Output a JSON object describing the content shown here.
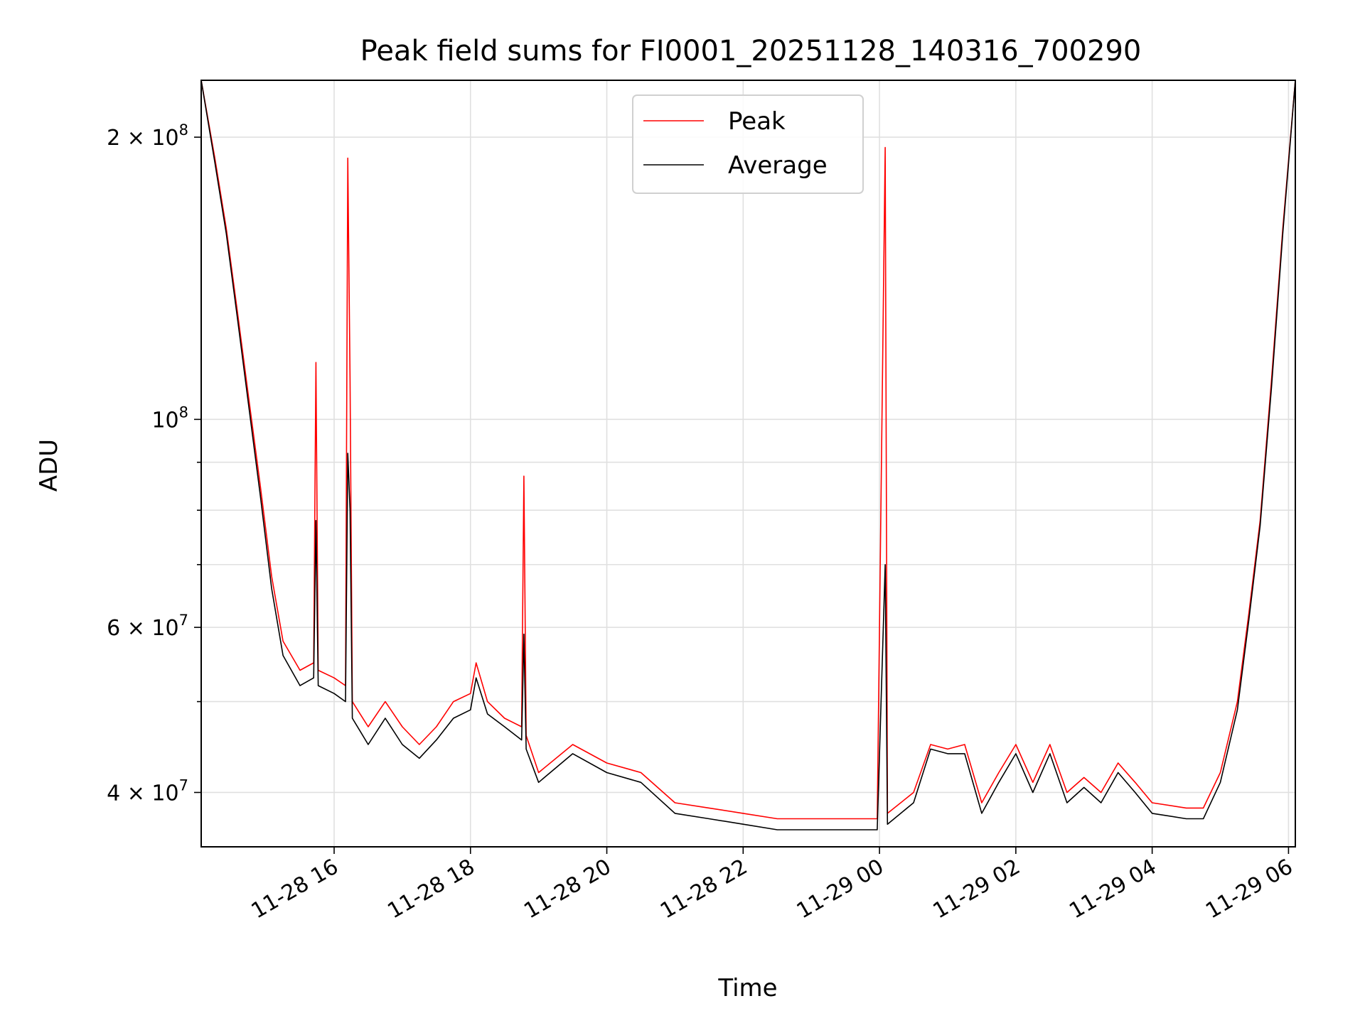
{
  "chart_data": {
    "type": "line",
    "title": "Peak field sums for FI0001_20251128_140316_700290",
    "xlabel": "Time",
    "ylabel": "ADU",
    "x_scale": "time",
    "y_scale": "log",
    "xlim": [
      "2025-11-28 14:03",
      "2025-11-29 06:06"
    ],
    "ylim": [
      35000000,
      230000000
    ],
    "grid": true,
    "legend_location": "upper center",
    "x_ticks": [
      {
        "value": "2025-11-28 16:00",
        "label": "11-28 16"
      },
      {
        "value": "2025-11-28 18:00",
        "label": "11-28 18"
      },
      {
        "value": "2025-11-28 20:00",
        "label": "11-28 20"
      },
      {
        "value": "2025-11-28 22:00",
        "label": "11-28 22"
      },
      {
        "value": "2025-11-29 00:00",
        "label": "11-29 00"
      },
      {
        "value": "2025-11-29 02:00",
        "label": "11-29 02"
      },
      {
        "value": "2025-11-29 04:00",
        "label": "11-29 04"
      },
      {
        "value": "2025-11-29 06:00",
        "label": "11-29 06"
      }
    ],
    "y_ticks": [
      {
        "value": 40000000,
        "base": "4",
        "exp": "7"
      },
      {
        "value": 60000000,
        "base": "6",
        "exp": "7"
      },
      {
        "value": 100000000,
        "base": "",
        "exp": "8"
      },
      {
        "value": 200000000,
        "base": "2",
        "exp": "8"
      }
    ],
    "y_minor_ticks": [
      50000000,
      70000000,
      80000000,
      90000000
    ],
    "series": [
      {
        "name": "Peak",
        "color": "#ff0000",
        "points": [
          [
            "2025-11-28 14:03",
            230000000
          ],
          [
            "2025-11-28 14:15",
            190000000
          ],
          [
            "2025-11-28 14:25",
            160000000
          ],
          [
            "2025-11-28 14:35",
            130000000
          ],
          [
            "2025-11-28 14:45",
            105000000
          ],
          [
            "2025-11-28 14:55",
            85000000
          ],
          [
            "2025-11-28 15:05",
            68000000
          ],
          [
            "2025-11-28 15:15",
            58000000
          ],
          [
            "2025-11-28 15:30",
            54000000
          ],
          [
            "2025-11-28 15:42",
            55000000
          ],
          [
            "2025-11-28 15:44",
            115000000
          ],
          [
            "2025-11-28 15:46",
            54000000
          ],
          [
            "2025-11-28 16:00",
            53000000
          ],
          [
            "2025-11-28 16:10",
            52000000
          ],
          [
            "2025-11-28 16:12",
            190000000
          ],
          [
            "2025-11-28 16:14",
            110000000
          ],
          [
            "2025-11-28 16:16",
            50000000
          ],
          [
            "2025-11-28 16:30",
            47000000
          ],
          [
            "2025-11-28 16:45",
            50000000
          ],
          [
            "2025-11-28 17:00",
            47000000
          ],
          [
            "2025-11-28 17:15",
            45000000
          ],
          [
            "2025-11-28 17:30",
            47000000
          ],
          [
            "2025-11-28 17:45",
            50000000
          ],
          [
            "2025-11-28 18:00",
            51000000
          ],
          [
            "2025-11-28 18:05",
            55000000
          ],
          [
            "2025-11-28 18:15",
            50000000
          ],
          [
            "2025-11-28 18:30",
            48000000
          ],
          [
            "2025-11-28 18:45",
            47000000
          ],
          [
            "2025-11-28 18:47",
            87000000
          ],
          [
            "2025-11-28 18:49",
            46000000
          ],
          [
            "2025-11-28 19:00",
            42000000
          ],
          [
            "2025-11-28 19:30",
            45000000
          ],
          [
            "2025-11-28 20:00",
            43000000
          ],
          [
            "2025-11-28 20:30",
            42000000
          ],
          [
            "2025-11-28 21:00",
            39000000
          ],
          [
            "2025-11-28 21:30",
            38500000
          ],
          [
            "2025-11-28 22:00",
            38000000
          ],
          [
            "2025-11-28 22:30",
            37500000
          ],
          [
            "2025-11-28 23:00",
            37500000
          ],
          [
            "2025-11-28 23:30",
            37500000
          ],
          [
            "2025-11-28 23:58",
            37500000
          ],
          [
            "2025-11-29 00:05",
            195000000
          ],
          [
            "2025-11-29 00:07",
            38000000
          ],
          [
            "2025-11-29 00:30",
            40000000
          ],
          [
            "2025-11-29 00:45",
            45000000
          ],
          [
            "2025-11-29 01:00",
            44500000
          ],
          [
            "2025-11-29 01:15",
            45000000
          ],
          [
            "2025-11-29 01:30",
            39000000
          ],
          [
            "2025-11-29 01:45",
            42000000
          ],
          [
            "2025-11-29 02:00",
            45000000
          ],
          [
            "2025-11-29 02:15",
            41000000
          ],
          [
            "2025-11-29 02:30",
            45000000
          ],
          [
            "2025-11-29 02:45",
            40000000
          ],
          [
            "2025-11-29 03:00",
            41500000
          ],
          [
            "2025-11-29 03:15",
            40000000
          ],
          [
            "2025-11-29 03:30",
            43000000
          ],
          [
            "2025-11-29 03:45",
            41000000
          ],
          [
            "2025-11-29 04:00",
            39000000
          ],
          [
            "2025-11-29 04:30",
            38500000
          ],
          [
            "2025-11-29 04:45",
            38500000
          ],
          [
            "2025-11-29 05:00",
            42000000
          ],
          [
            "2025-11-29 05:15",
            50000000
          ],
          [
            "2025-11-29 05:25",
            62000000
          ],
          [
            "2025-11-29 05:35",
            78000000
          ],
          [
            "2025-11-29 05:45",
            110000000
          ],
          [
            "2025-11-29 05:55",
            160000000
          ],
          [
            "2025-11-29 06:06",
            230000000
          ]
        ]
      },
      {
        "name": "Average",
        "color": "#000000",
        "points": [
          [
            "2025-11-28 14:03",
            230000000
          ],
          [
            "2025-11-28 14:15",
            188000000
          ],
          [
            "2025-11-28 14:25",
            158000000
          ],
          [
            "2025-11-28 14:35",
            128000000
          ],
          [
            "2025-11-28 14:45",
            103000000
          ],
          [
            "2025-11-28 14:55",
            83000000
          ],
          [
            "2025-11-28 15:05",
            66000000
          ],
          [
            "2025-11-28 15:15",
            56000000
          ],
          [
            "2025-11-28 15:30",
            52000000
          ],
          [
            "2025-11-28 15:42",
            53000000
          ],
          [
            "2025-11-28 15:44",
            78000000
          ],
          [
            "2025-11-28 15:46",
            52000000
          ],
          [
            "2025-11-28 16:00",
            51000000
          ],
          [
            "2025-11-28 16:10",
            50000000
          ],
          [
            "2025-11-28 16:12",
            92000000
          ],
          [
            "2025-11-28 16:14",
            80000000
          ],
          [
            "2025-11-28 16:16",
            48000000
          ],
          [
            "2025-11-28 16:30",
            45000000
          ],
          [
            "2025-11-28 16:45",
            48000000
          ],
          [
            "2025-11-28 17:00",
            45000000
          ],
          [
            "2025-11-28 17:15",
            43500000
          ],
          [
            "2025-11-28 17:30",
            45500000
          ],
          [
            "2025-11-28 17:45",
            48000000
          ],
          [
            "2025-11-28 18:00",
            49000000
          ],
          [
            "2025-11-28 18:05",
            53000000
          ],
          [
            "2025-11-28 18:15",
            48500000
          ],
          [
            "2025-11-28 18:30",
            47000000
          ],
          [
            "2025-11-28 18:45",
            45500000
          ],
          [
            "2025-11-28 18:47",
            59000000
          ],
          [
            "2025-11-28 18:49",
            44500000
          ],
          [
            "2025-11-28 19:00",
            41000000
          ],
          [
            "2025-11-28 19:30",
            44000000
          ],
          [
            "2025-11-28 20:00",
            42000000
          ],
          [
            "2025-11-28 20:30",
            41000000
          ],
          [
            "2025-11-28 21:00",
            38000000
          ],
          [
            "2025-11-28 21:30",
            37500000
          ],
          [
            "2025-11-28 22:00",
            37000000
          ],
          [
            "2025-11-28 22:30",
            36500000
          ],
          [
            "2025-11-28 23:00",
            36500000
          ],
          [
            "2025-11-28 23:30",
            36500000
          ],
          [
            "2025-11-28 23:58",
            36500000
          ],
          [
            "2025-11-29 00:05",
            70000000
          ],
          [
            "2025-11-29 00:07",
            37000000
          ],
          [
            "2025-11-29 00:30",
            39000000
          ],
          [
            "2025-11-29 00:45",
            44500000
          ],
          [
            "2025-11-29 01:00",
            44000000
          ],
          [
            "2025-11-29 01:15",
            44000000
          ],
          [
            "2025-11-29 01:30",
            38000000
          ],
          [
            "2025-11-29 01:45",
            41000000
          ],
          [
            "2025-11-29 02:00",
            44000000
          ],
          [
            "2025-11-29 02:15",
            40000000
          ],
          [
            "2025-11-29 02:30",
            44000000
          ],
          [
            "2025-11-29 02:45",
            39000000
          ],
          [
            "2025-11-29 03:00",
            40500000
          ],
          [
            "2025-11-29 03:15",
            39000000
          ],
          [
            "2025-11-29 03:30",
            42000000
          ],
          [
            "2025-11-29 03:45",
            40000000
          ],
          [
            "2025-11-29 04:00",
            38000000
          ],
          [
            "2025-11-29 04:30",
            37500000
          ],
          [
            "2025-11-29 04:45",
            37500000
          ],
          [
            "2025-11-29 05:00",
            41000000
          ],
          [
            "2025-11-29 05:15",
            49000000
          ],
          [
            "2025-11-29 05:25",
            61000000
          ],
          [
            "2025-11-29 05:35",
            77000000
          ],
          [
            "2025-11-29 05:45",
            108000000
          ],
          [
            "2025-11-29 05:55",
            158000000
          ],
          [
            "2025-11-29 06:06",
            230000000
          ]
        ]
      }
    ]
  }
}
